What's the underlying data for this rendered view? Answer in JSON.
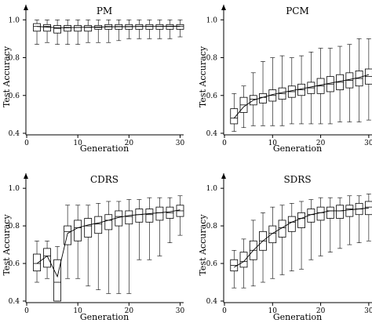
{
  "chart_data": [
    {
      "type": "box",
      "title": "PM",
      "xlabel": "Generation",
      "ylabel": "Test Accuracy",
      "xlim": [
        0,
        31
      ],
      "ylim": [
        0.4,
        1.08
      ],
      "xticks": [
        0,
        10,
        20,
        30
      ],
      "yticks": [
        0.4,
        0.6,
        0.8,
        1.0
      ],
      "xtick_labels": [
        "0",
        "10",
        "20",
        "30"
      ],
      "ytick_labels": [
        "0.4",
        "0.6",
        "0.8",
        "1.0"
      ],
      "x": [
        2,
        4,
        6,
        8,
        10,
        12,
        14,
        16,
        18,
        20,
        22,
        24,
        26,
        28,
        30
      ],
      "boxes": [
        {
          "low": 0.87,
          "q1": 0.94,
          "med": 0.965,
          "q3": 0.98,
          "high": 1.0
        },
        {
          "low": 0.88,
          "q1": 0.94,
          "med": 0.965,
          "q3": 0.975,
          "high": 1.0
        },
        {
          "low": 0.87,
          "q1": 0.93,
          "med": 0.955,
          "q3": 0.97,
          "high": 1.0
        },
        {
          "low": 0.87,
          "q1": 0.94,
          "med": 0.96,
          "q3": 0.97,
          "high": 1.0
        },
        {
          "low": 0.87,
          "q1": 0.94,
          "med": 0.96,
          "q3": 0.97,
          "high": 1.0
        },
        {
          "low": 0.88,
          "q1": 0.94,
          "med": 0.96,
          "q3": 0.97,
          "high": 1.0
        },
        {
          "low": 0.88,
          "q1": 0.95,
          "med": 0.96,
          "q3": 0.97,
          "high": 1.0
        },
        {
          "low": 0.88,
          "q1": 0.95,
          "med": 0.965,
          "q3": 0.975,
          "high": 1.0
        },
        {
          "low": 0.89,
          "q1": 0.95,
          "med": 0.965,
          "q3": 0.975,
          "high": 1.0
        },
        {
          "low": 0.9,
          "q1": 0.95,
          "med": 0.965,
          "q3": 0.975,
          "high": 1.0
        },
        {
          "low": 0.9,
          "q1": 0.95,
          "med": 0.965,
          "q3": 0.975,
          "high": 1.0
        },
        {
          "low": 0.9,
          "q1": 0.95,
          "med": 0.965,
          "q3": 0.975,
          "high": 1.0
        },
        {
          "low": 0.9,
          "q1": 0.95,
          "med": 0.965,
          "q3": 0.975,
          "high": 1.0
        },
        {
          "low": 0.9,
          "q1": 0.95,
          "med": 0.965,
          "q3": 0.975,
          "high": 1.0
        },
        {
          "low": 0.91,
          "q1": 0.95,
          "med": 0.965,
          "q3": 0.975,
          "high": 1.0
        }
      ],
      "mean_curve": {
        "x": [
          2,
          4,
          6,
          8,
          10,
          12,
          14,
          16,
          18,
          20,
          22,
          24,
          26,
          28,
          30
        ],
        "y": [
          0.965,
          0.962,
          0.958,
          0.958,
          0.96,
          0.961,
          0.962,
          0.963,
          0.964,
          0.964,
          0.965,
          0.965,
          0.965,
          0.966,
          0.966
        ]
      }
    },
    {
      "type": "box",
      "title": "PCM",
      "xlabel": "Generation",
      "ylabel": "Test Accuracy",
      "xlim": [
        0,
        31
      ],
      "ylim": [
        0.4,
        1.08
      ],
      "xticks": [
        0,
        10,
        20,
        30
      ],
      "yticks": [
        0.4,
        0.6,
        0.8,
        1.0
      ],
      "xtick_labels": [
        "0",
        "10",
        "20",
        "30"
      ],
      "ytick_labels": [
        "0.4",
        "0.6",
        "0.8",
        "1.0"
      ],
      "x": [
        2,
        4,
        6,
        8,
        10,
        12,
        14,
        16,
        18,
        20,
        22,
        24,
        26,
        28,
        30
      ],
      "boxes": [
        {
          "low": 0.41,
          "q1": 0.45,
          "med": 0.48,
          "q3": 0.53,
          "high": 0.61
        },
        {
          "low": 0.43,
          "q1": 0.51,
          "med": 0.55,
          "q3": 0.59,
          "high": 0.65
        },
        {
          "low": 0.44,
          "q1": 0.55,
          "med": 0.58,
          "q3": 0.6,
          "high": 0.72
        },
        {
          "low": 0.44,
          "q1": 0.56,
          "med": 0.59,
          "q3": 0.61,
          "high": 0.78
        },
        {
          "low": 0.44,
          "q1": 0.57,
          "med": 0.6,
          "q3": 0.63,
          "high": 0.8
        },
        {
          "low": 0.44,
          "q1": 0.58,
          "med": 0.61,
          "q3": 0.64,
          "high": 0.81
        },
        {
          "low": 0.45,
          "q1": 0.59,
          "med": 0.62,
          "q3": 0.65,
          "high": 0.8
        },
        {
          "low": 0.45,
          "q1": 0.6,
          "med": 0.63,
          "q3": 0.66,
          "high": 0.81
        },
        {
          "low": 0.45,
          "q1": 0.61,
          "med": 0.64,
          "q3": 0.67,
          "high": 0.83
        },
        {
          "low": 0.45,
          "q1": 0.61,
          "med": 0.65,
          "q3": 0.69,
          "high": 0.85
        },
        {
          "low": 0.45,
          "q1": 0.62,
          "med": 0.66,
          "q3": 0.7,
          "high": 0.85
        },
        {
          "low": 0.46,
          "q1": 0.63,
          "med": 0.67,
          "q3": 0.71,
          "high": 0.86
        },
        {
          "low": 0.46,
          "q1": 0.64,
          "med": 0.68,
          "q3": 0.72,
          "high": 0.87
        },
        {
          "low": 0.46,
          "q1": 0.65,
          "med": 0.69,
          "q3": 0.73,
          "high": 0.9
        },
        {
          "low": 0.47,
          "q1": 0.66,
          "med": 0.7,
          "q3": 0.74,
          "high": 0.9
        }
      ],
      "mean_curve": {
        "x": [
          2,
          4,
          6,
          8,
          10,
          12,
          14,
          16,
          18,
          20,
          22,
          24,
          26,
          28,
          30
        ],
        "y": [
          0.48,
          0.54,
          0.575,
          0.59,
          0.605,
          0.615,
          0.625,
          0.635,
          0.645,
          0.655,
          0.665,
          0.675,
          0.685,
          0.695,
          0.71
        ]
      }
    },
    {
      "type": "box",
      "title": "CDRS",
      "xlabel": "Generation",
      "ylabel": "Test Accuracy",
      "xlim": [
        0,
        31
      ],
      "ylim": [
        0.4,
        1.08
      ],
      "xticks": [
        0,
        10,
        20,
        30
      ],
      "yticks": [
        0.4,
        0.6,
        0.8,
        1.0
      ],
      "xtick_labels": [
        "0",
        "10",
        "20",
        "30"
      ],
      "ytick_labels": [
        "0.4",
        "0.6",
        "0.8",
        "1.0"
      ],
      "x": [
        2,
        4,
        6,
        8,
        10,
        12,
        14,
        16,
        18,
        20,
        22,
        24,
        26,
        28,
        30
      ],
      "boxes": [
        {
          "low": 0.5,
          "q1": 0.56,
          "med": 0.6,
          "q3": 0.65,
          "high": 0.72
        },
        {
          "low": 0.52,
          "q1": 0.58,
          "med": 0.64,
          "q3": 0.68,
          "high": 0.72
        },
        {
          "low": 0.4,
          "q1": 0.4,
          "med": 0.5,
          "q3": 0.62,
          "high": 0.69
        },
        {
          "low": 0.52,
          "q1": 0.7,
          "med": 0.77,
          "q3": 0.8,
          "high": 0.91
        },
        {
          "low": 0.52,
          "q1": 0.72,
          "med": 0.79,
          "q3": 0.83,
          "high": 0.91
        },
        {
          "low": 0.48,
          "q1": 0.74,
          "med": 0.8,
          "q3": 0.84,
          "high": 0.91
        },
        {
          "low": 0.46,
          "q1": 0.76,
          "med": 0.81,
          "q3": 0.85,
          "high": 0.92
        },
        {
          "low": 0.44,
          "q1": 0.78,
          "med": 0.83,
          "q3": 0.86,
          "high": 0.93
        },
        {
          "low": 0.44,
          "q1": 0.8,
          "med": 0.85,
          "q3": 0.88,
          "high": 0.93
        },
        {
          "low": 0.44,
          "q1": 0.81,
          "med": 0.85,
          "q3": 0.88,
          "high": 0.94
        },
        {
          "low": 0.62,
          "q1": 0.82,
          "med": 0.86,
          "q3": 0.89,
          "high": 0.94
        },
        {
          "low": 0.62,
          "q1": 0.82,
          "med": 0.86,
          "q3": 0.89,
          "high": 0.95
        },
        {
          "low": 0.64,
          "q1": 0.83,
          "med": 0.87,
          "q3": 0.9,
          "high": 0.95
        },
        {
          "low": 0.71,
          "q1": 0.84,
          "med": 0.87,
          "q3": 0.9,
          "high": 0.95
        },
        {
          "low": 0.75,
          "q1": 0.85,
          "med": 0.88,
          "q3": 0.91,
          "high": 0.96
        }
      ],
      "mean_curve": {
        "x": [
          2,
          4,
          6,
          8,
          10,
          12,
          14,
          16,
          18,
          20,
          22,
          24,
          26,
          28,
          30
        ],
        "y": [
          0.6,
          0.64,
          0.53,
          0.76,
          0.79,
          0.805,
          0.815,
          0.83,
          0.845,
          0.855,
          0.86,
          0.865,
          0.87,
          0.875,
          0.885
        ]
      }
    },
    {
      "type": "box",
      "title": "SDRS",
      "xlabel": "Generation",
      "ylabel": "Test Accuracy",
      "xlim": [
        0,
        31
      ],
      "ylim": [
        0.4,
        1.08
      ],
      "xticks": [
        0,
        10,
        20,
        30
      ],
      "yticks": [
        0.4,
        0.6,
        0.8,
        1.0
      ],
      "xtick_labels": [
        "0",
        "10",
        "20",
        "30"
      ],
      "ytick_labels": [
        "0.4",
        "0.6",
        "0.8",
        "1.0"
      ],
      "x": [
        2,
        4,
        6,
        8,
        10,
        12,
        14,
        16,
        18,
        20,
        22,
        24,
        26,
        28,
        30
      ],
      "boxes": [
        {
          "low": 0.47,
          "q1": 0.56,
          "med": 0.59,
          "q3": 0.62,
          "high": 0.67
        },
        {
          "low": 0.47,
          "q1": 0.58,
          "med": 0.61,
          "q3": 0.66,
          "high": 0.73
        },
        {
          "low": 0.48,
          "q1": 0.62,
          "med": 0.67,
          "q3": 0.72,
          "high": 0.83
        },
        {
          "low": 0.5,
          "q1": 0.67,
          "med": 0.72,
          "q3": 0.77,
          "high": 0.87
        },
        {
          "low": 0.52,
          "q1": 0.71,
          "med": 0.76,
          "q3": 0.8,
          "high": 0.9
        },
        {
          "low": 0.54,
          "q1": 0.74,
          "med": 0.79,
          "q3": 0.83,
          "high": 0.91
        },
        {
          "low": 0.56,
          "q1": 0.77,
          "med": 0.82,
          "q3": 0.85,
          "high": 0.92
        },
        {
          "low": 0.57,
          "q1": 0.79,
          "med": 0.84,
          "q3": 0.87,
          "high": 0.93
        },
        {
          "low": 0.62,
          "q1": 0.82,
          "med": 0.86,
          "q3": 0.89,
          "high": 0.94
        },
        {
          "low": 0.64,
          "q1": 0.83,
          "med": 0.87,
          "q3": 0.9,
          "high": 0.95
        },
        {
          "low": 0.66,
          "q1": 0.84,
          "med": 0.88,
          "q3": 0.9,
          "high": 0.95
        },
        {
          "low": 0.68,
          "q1": 0.84,
          "med": 0.88,
          "q3": 0.91,
          "high": 0.95
        },
        {
          "low": 0.7,
          "q1": 0.85,
          "med": 0.89,
          "q3": 0.91,
          "high": 0.96
        },
        {
          "low": 0.71,
          "q1": 0.86,
          "med": 0.89,
          "q3": 0.92,
          "high": 0.96
        },
        {
          "low": 0.72,
          "q1": 0.86,
          "med": 0.9,
          "q3": 0.93,
          "high": 0.97
        }
      ],
      "mean_curve": {
        "x": [
          2,
          4,
          6,
          8,
          10,
          12,
          14,
          16,
          18,
          20,
          22,
          24,
          26,
          28,
          30
        ],
        "y": [
          0.58,
          0.61,
          0.67,
          0.72,
          0.76,
          0.79,
          0.82,
          0.84,
          0.86,
          0.87,
          0.88,
          0.88,
          0.885,
          0.89,
          0.895
        ]
      }
    }
  ]
}
